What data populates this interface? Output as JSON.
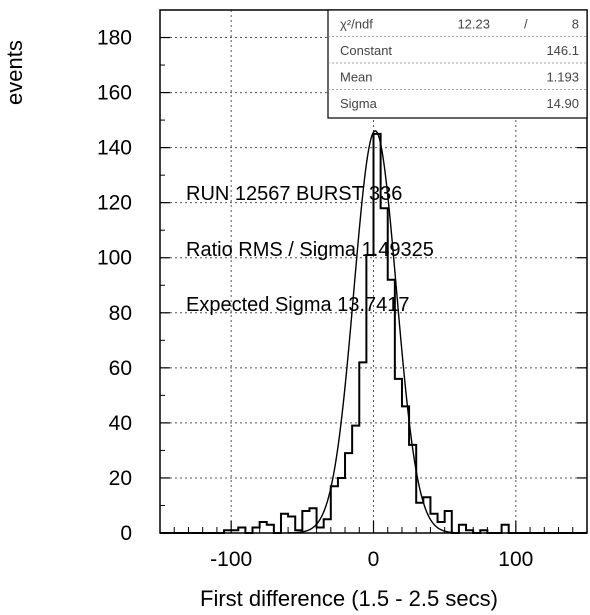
{
  "chart_data": {
    "type": "bar",
    "xlabel": "First difference (1.5 - 2.5 secs)",
    "ylabel": "events",
    "xlim": [
      -150,
      150
    ],
    "ylim": [
      0,
      190
    ],
    "x_ticks": [
      -100,
      0,
      100
    ],
    "y_ticks": [
      0,
      20,
      40,
      60,
      80,
      100,
      120,
      140,
      160,
      180
    ],
    "grid": true,
    "histogram": {
      "bin_width": 5,
      "bins": [
        [
          -150,
          0
        ],
        [
          -145,
          0
        ],
        [
          -140,
          0
        ],
        [
          -135,
          0
        ],
        [
          -130,
          0
        ],
        [
          -125,
          0
        ],
        [
          -120,
          0
        ],
        [
          -115,
          0
        ],
        [
          -110,
          0
        ],
        [
          -105,
          1
        ],
        [
          -100,
          1
        ],
        [
          -95,
          2
        ],
        [
          -90,
          0
        ],
        [
          -85,
          2
        ],
        [
          -80,
          4
        ],
        [
          -75,
          3
        ],
        [
          -70,
          0
        ],
        [
          -65,
          7
        ],
        [
          -60,
          6
        ],
        [
          -55,
          1
        ],
        [
          -50,
          8
        ],
        [
          -45,
          9
        ],
        [
          -40,
          2
        ],
        [
          -35,
          5
        ],
        [
          -30,
          17
        ],
        [
          -25,
          20
        ],
        [
          -20,
          29
        ],
        [
          -15,
          39
        ],
        [
          -10,
          62
        ],
        [
          -5,
          101
        ],
        [
          0,
          145
        ],
        [
          5,
          118
        ],
        [
          10,
          92
        ],
        [
          15,
          56
        ],
        [
          20,
          46
        ],
        [
          25,
          32
        ],
        [
          30,
          11
        ],
        [
          35,
          13
        ],
        [
          40,
          7
        ],
        [
          45,
          4
        ],
        [
          50,
          8
        ],
        [
          55,
          0
        ],
        [
          60,
          3
        ],
        [
          65,
          1
        ],
        [
          70,
          0
        ],
        [
          75,
          1
        ],
        [
          80,
          0
        ],
        [
          85,
          0
        ],
        [
          90,
          3
        ],
        [
          95,
          0
        ],
        [
          100,
          0
        ],
        [
          105,
          0
        ],
        [
          110,
          0
        ],
        [
          115,
          0
        ],
        [
          120,
          0
        ],
        [
          125,
          0
        ],
        [
          130,
          0
        ],
        [
          135,
          0
        ],
        [
          140,
          0
        ],
        [
          145,
          0
        ]
      ]
    },
    "fit": {
      "type": "gaussian",
      "constant": 146.1,
      "mean": 1.193,
      "sigma": 14.9
    },
    "annotations": [
      "RUN  12567     BURST  336",
      "Ratio RMS / Sigma  1.49325",
      "Expected Sigma  13.7417"
    ],
    "stats_box": {
      "rows": [
        {
          "label": "χ²/ndf",
          "value": "12.23",
          "sep": "/",
          "extra": "8"
        },
        {
          "label": "Constant",
          "value": "146.1"
        },
        {
          "label": "Mean",
          "value": "1.193"
        },
        {
          "label": "Sigma",
          "value": "14.90"
        }
      ]
    }
  }
}
